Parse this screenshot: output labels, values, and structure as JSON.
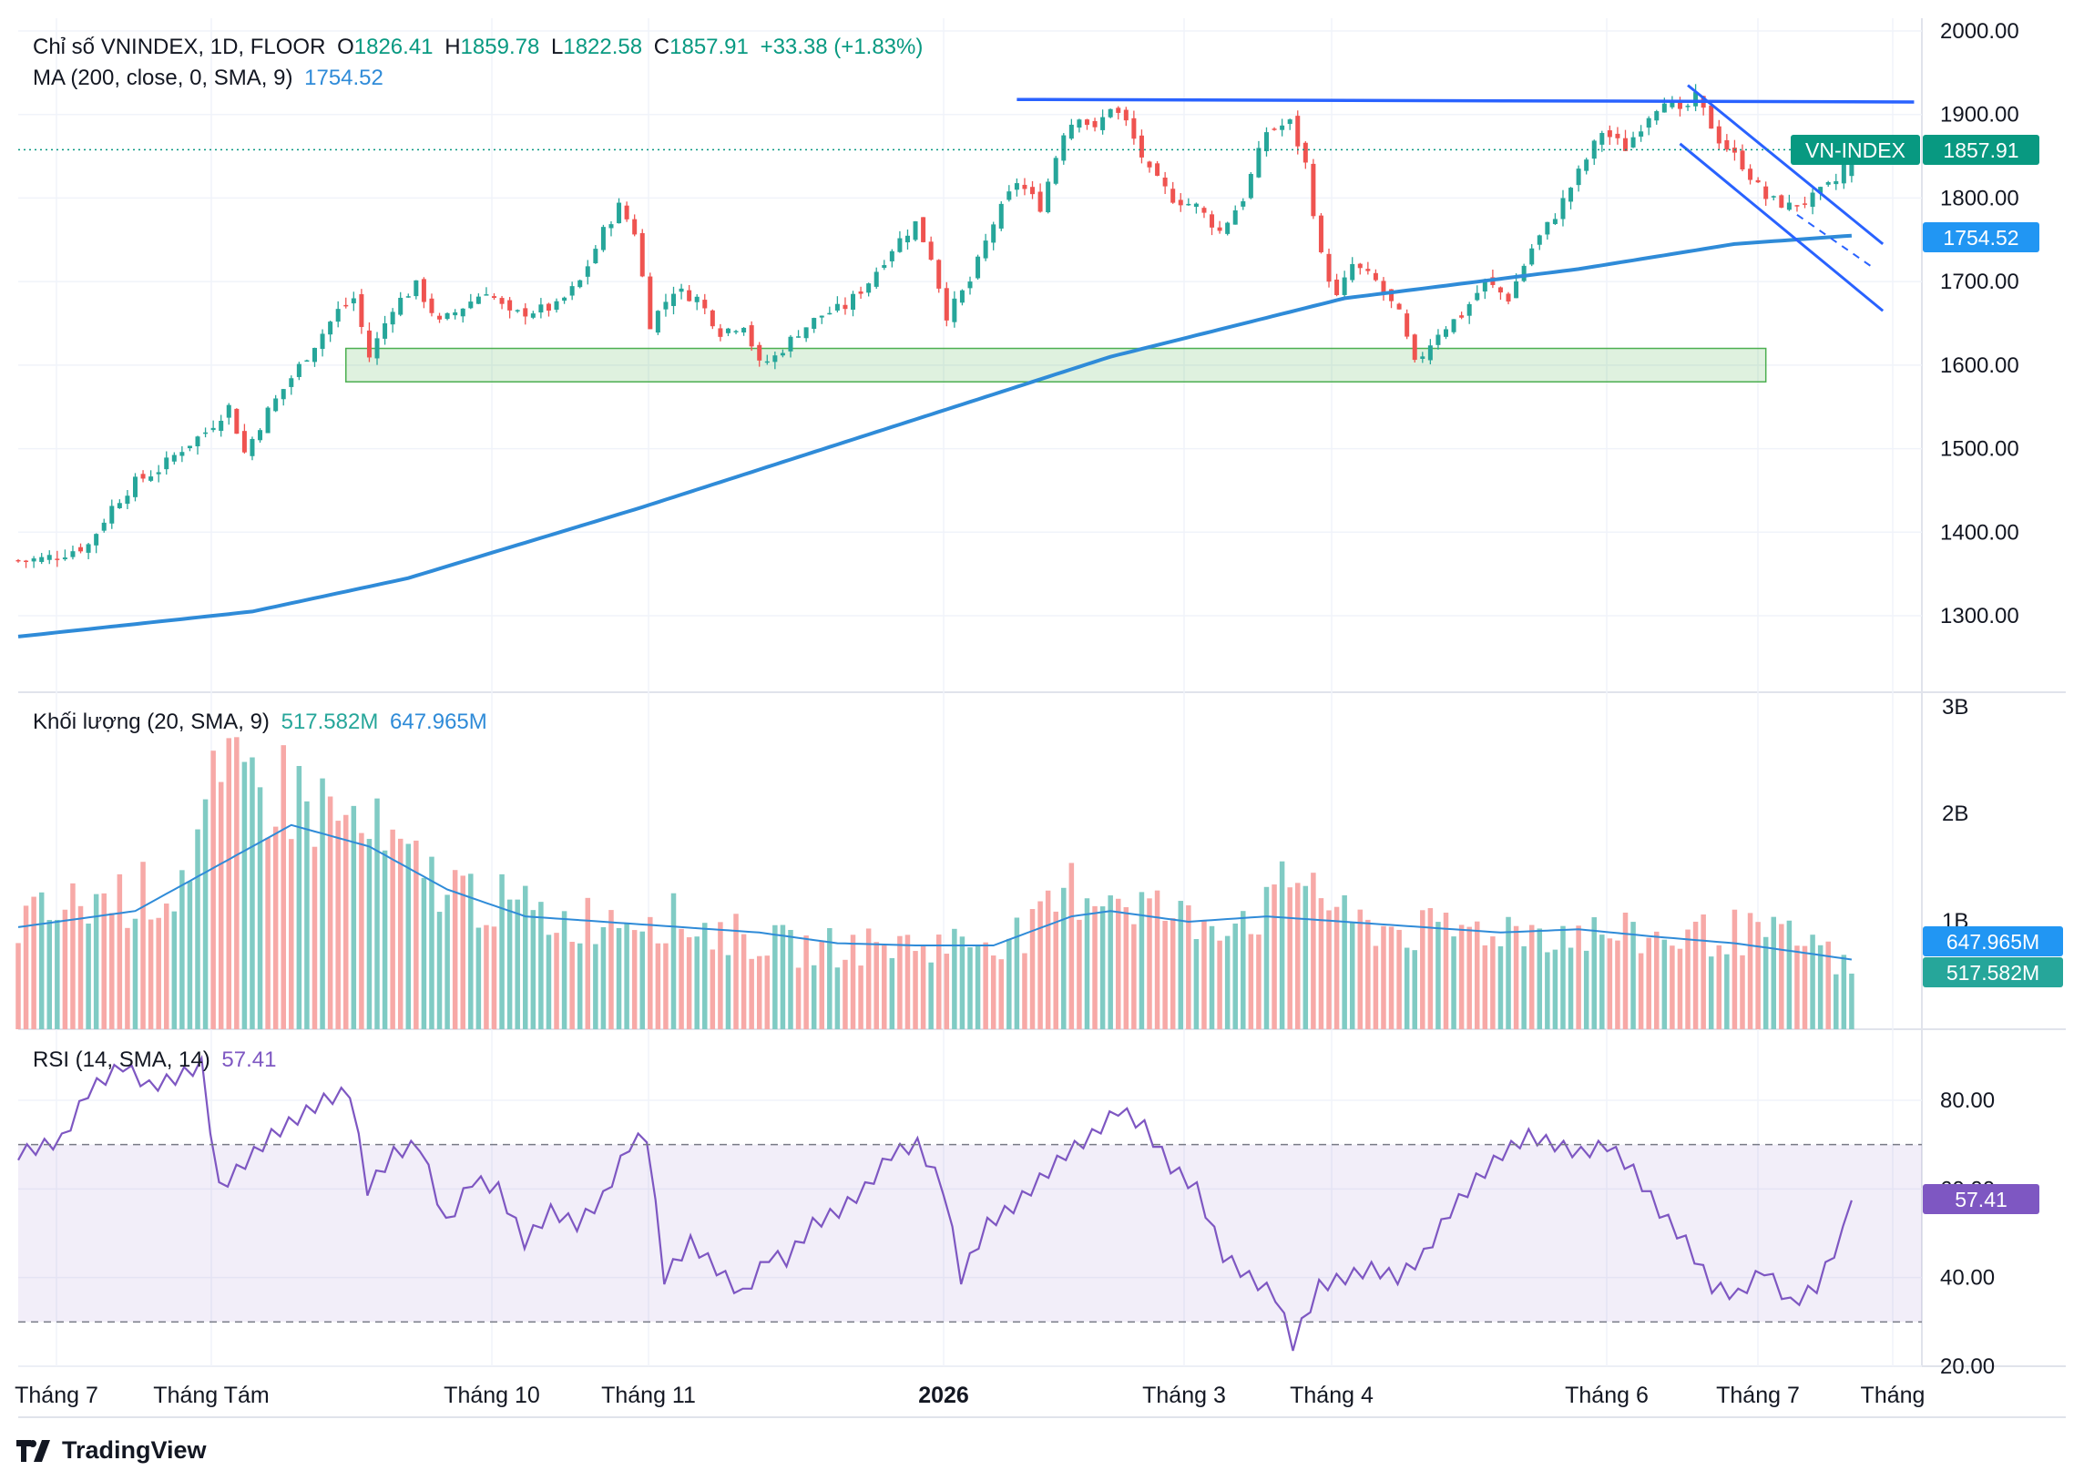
{
  "header": {
    "title": "Chỉ số VNINDEX, 1D, FLOOR",
    "o_label": "O",
    "o_value": "1826.41",
    "h_label": "H",
    "h_value": "1859.78",
    "l_label": "L",
    "l_value": "1822.58",
    "c_label": "C",
    "c_value": "1857.91",
    "change": "+33.38 (+1.83%)",
    "ma_label": "MA (200, close, 0, SMA, 9)",
    "ma_value": "1754.52"
  },
  "volume_header": {
    "label": "Khối lượng (20, SMA, 9)",
    "value1": "517.582M",
    "value2": "647.965M"
  },
  "rsi_header": {
    "label": "RSI (14, SMA, 14)",
    "value": "57.41"
  },
  "badges": {
    "symbol": "VN-INDEX",
    "price": "1857.91",
    "ma": "1754.52",
    "vol_ma": "647.965M",
    "vol": "517.582M",
    "rsi": "57.41"
  },
  "brand": "TradingView",
  "colors": {
    "up": "#26a69a",
    "down": "#ef5350",
    "ma": "#2f8bd8",
    "trend": "#2962ff",
    "rsi": "#7e57c2",
    "zone": "#4caf50"
  },
  "chart_data": [
    {
      "type": "candlestick",
      "panel": "price",
      "y_ticks": [
        "2000.00",
        "1900.00",
        "1800.00",
        "1700.00",
        "1600.00",
        "1500.00",
        "1400.00",
        "1300.00"
      ],
      "ylim": [
        1225,
        2035
      ],
      "x_ticks": [
        "Tháng 7",
        "Tháng Tám",
        "Tháng 10",
        "Tháng 11",
        "2026",
        "Tháng 3",
        "Tháng 4",
        "Tháng 6",
        "Tháng 7",
        "Tháng"
      ],
      "close_series": [
        [
          0,
          1366
        ],
        [
          3,
          1368
        ],
        [
          6,
          1375
        ],
        [
          9,
          1385
        ],
        [
          12,
          1430
        ],
        [
          15,
          1460
        ],
        [
          18,
          1475
        ],
        [
          21,
          1500
        ],
        [
          24,
          1520
        ],
        [
          27,
          1550
        ],
        [
          29,
          1495
        ],
        [
          32,
          1545
        ],
        [
          35,
          1585
        ],
        [
          38,
          1625
        ],
        [
          41,
          1665
        ],
        [
          43,
          1680
        ],
        [
          45,
          1610
        ],
        [
          48,
          1670
        ],
        [
          51,
          1695
        ],
        [
          54,
          1650
        ],
        [
          57,
          1670
        ],
        [
          60,
          1690
        ],
        [
          63,
          1660
        ],
        [
          66,
          1665
        ],
        [
          69,
          1670
        ],
        [
          72,
          1700
        ],
        [
          75,
          1760
        ],
        [
          77,
          1790
        ],
        [
          79,
          1760
        ],
        [
          81,
          1650
        ],
        [
          84,
          1690
        ],
        [
          87,
          1680
        ],
        [
          90,
          1640
        ],
        [
          93,
          1650
        ],
        [
          95,
          1600
        ],
        [
          97,
          1610
        ],
        [
          100,
          1640
        ],
        [
          103,
          1660
        ],
        [
          106,
          1670
        ],
        [
          109,
          1700
        ],
        [
          112,
          1740
        ],
        [
          115,
          1770
        ],
        [
          117,
          1730
        ],
        [
          119,
          1660
        ],
        [
          122,
          1700
        ],
        [
          125,
          1770
        ],
        [
          128,
          1820
        ],
        [
          131,
          1790
        ],
        [
          134,
          1880
        ],
        [
          136,
          1900
        ],
        [
          138,
          1880
        ],
        [
          140,
          1910
        ],
        [
          142,
          1890
        ],
        [
          145,
          1830
        ],
        [
          148,
          1800
        ],
        [
          151,
          1790
        ],
        [
          154,
          1760
        ],
        [
          157,
          1800
        ],
        [
          160,
          1880
        ],
        [
          163,
          1890
        ],
        [
          165,
          1840
        ],
        [
          167,
          1730
        ],
        [
          169,
          1680
        ],
        [
          171,
          1720
        ],
        [
          174,
          1700
        ],
        [
          177,
          1660
        ],
        [
          179,
          1600
        ],
        [
          182,
          1640
        ],
        [
          185,
          1660
        ],
        [
          188,
          1700
        ],
        [
          191,
          1680
        ],
        [
          194,
          1740
        ],
        [
          197,
          1780
        ],
        [
          200,
          1830
        ],
        [
          203,
          1880
        ],
        [
          206,
          1860
        ],
        [
          209,
          1900
        ],
        [
          211,
          1920
        ],
        [
          213,
          1900
        ],
        [
          215,
          1920
        ],
        [
          218,
          1870
        ],
        [
          221,
          1840
        ],
        [
          224,
          1800
        ],
        [
          227,
          1790
        ],
        [
          230,
          1800
        ],
        [
          233,
          1820
        ],
        [
          235,
          1858
        ]
      ],
      "ma_series": [
        [
          0,
          1275
        ],
        [
          30,
          1305
        ],
        [
          50,
          1345
        ],
        [
          80,
          1430
        ],
        [
          110,
          1520
        ],
        [
          140,
          1610
        ],
        [
          170,
          1680
        ],
        [
          200,
          1715
        ],
        [
          220,
          1745
        ],
        [
          235,
          1755
        ]
      ],
      "annotations": {
        "resistance": [
          [
            128,
            1918
          ],
          [
            243,
            1915
          ]
        ],
        "channel_upper": [
          [
            214,
            1935
          ],
          [
            239,
            1745
          ]
        ],
        "channel_lower": [
          [
            213,
            1865
          ],
          [
            239,
            1665
          ]
        ],
        "dashed": [
          [
            228,
            1780
          ],
          [
            238,
            1715
          ]
        ],
        "support_zone": {
          "x": [
            42,
            224
          ],
          "y": [
            1580,
            1620
          ]
        }
      }
    },
    {
      "type": "bar",
      "panel": "volume",
      "y_ticks": [
        "3B",
        "2B",
        "1B"
      ],
      "ylim": [
        0,
        3000
      ],
      "values_millions_sampled": [
        [
          0,
          980
        ],
        [
          10,
          1200
        ],
        [
          20,
          1300
        ],
        [
          25,
          2100
        ],
        [
          30,
          2300
        ],
        [
          35,
          2200
        ],
        [
          40,
          2000
        ],
        [
          45,
          1800
        ],
        [
          50,
          1500
        ],
        [
          60,
          1200
        ],
        [
          70,
          1000
        ],
        [
          80,
          1100
        ],
        [
          90,
          900
        ],
        [
          100,
          750
        ],
        [
          110,
          780
        ],
        [
          120,
          800
        ],
        [
          130,
          900
        ],
        [
          135,
          1300
        ],
        [
          140,
          1300
        ],
        [
          150,
          1000
        ],
        [
          160,
          1100
        ],
        [
          165,
          1500
        ],
        [
          170,
          1000
        ],
        [
          180,
          900
        ],
        [
          190,
          950
        ],
        [
          200,
          900
        ],
        [
          210,
          850
        ],
        [
          220,
          900
        ],
        [
          230,
          800
        ],
        [
          235,
          518
        ]
      ],
      "ma_series_millions": [
        [
          0,
          950
        ],
        [
          15,
          1100
        ],
        [
          25,
          1500
        ],
        [
          35,
          1900
        ],
        [
          45,
          1700
        ],
        [
          55,
          1300
        ],
        [
          65,
          1050
        ],
        [
          75,
          1000
        ],
        [
          85,
          950
        ],
        [
          95,
          900
        ],
        [
          105,
          800
        ],
        [
          115,
          780
        ],
        [
          125,
          780
        ],
        [
          135,
          1050
        ],
        [
          140,
          1100
        ],
        [
          150,
          1000
        ],
        [
          160,
          1050
        ],
        [
          170,
          1000
        ],
        [
          180,
          950
        ],
        [
          190,
          900
        ],
        [
          200,
          930
        ],
        [
          210,
          860
        ],
        [
          220,
          800
        ],
        [
          230,
          700
        ],
        [
          235,
          648
        ]
      ]
    },
    {
      "type": "line",
      "panel": "rsi",
      "y_ticks": [
        "80.00",
        "60.00",
        "40.00",
        "20.00"
      ],
      "ylim": [
        20,
        95
      ],
      "band": [
        30,
        70
      ],
      "values": [
        [
          0,
          68
        ],
        [
          5,
          71
        ],
        [
          8,
          82
        ],
        [
          12,
          88
        ],
        [
          15,
          83
        ],
        [
          18,
          85
        ],
        [
          21,
          88
        ],
        [
          23,
          60
        ],
        [
          26,
          66
        ],
        [
          29,
          72
        ],
        [
          32,
          76
        ],
        [
          35,
          80
        ],
        [
          38,
          82
        ],
        [
          40,
          60
        ],
        [
          43,
          68
        ],
        [
          46,
          70
        ],
        [
          49,
          52
        ],
        [
          52,
          62
        ],
        [
          55,
          60
        ],
        [
          58,
          48
        ],
        [
          61,
          55
        ],
        [
          64,
          52
        ],
        [
          67,
          58
        ],
        [
          70,
          70
        ],
        [
          72,
          72
        ],
        [
          74,
          40
        ],
        [
          77,
          48
        ],
        [
          80,
          42
        ],
        [
          83,
          36
        ],
        [
          86,
          45
        ],
        [
          88,
          44
        ],
        [
          91,
          52
        ],
        [
          94,
          55
        ],
        [
          97,
          60
        ],
        [
          100,
          68
        ],
        [
          103,
          70
        ],
        [
          106,
          60
        ],
        [
          108,
          40
        ],
        [
          111,
          52
        ],
        [
          114,
          56
        ],
        [
          117,
          62
        ],
        [
          120,
          68
        ],
        [
          123,
          72
        ],
        [
          126,
          78
        ],
        [
          129,
          74
        ],
        [
          132,
          65
        ],
        [
          135,
          60
        ],
        [
          138,
          45
        ],
        [
          141,
          40
        ],
        [
          144,
          36
        ],
        [
          146,
          25
        ],
        [
          149,
          38
        ],
        [
          152,
          40
        ],
        [
          155,
          42
        ],
        [
          158,
          40
        ],
        [
          161,
          45
        ],
        [
          164,
          55
        ],
        [
          167,
          62
        ],
        [
          170,
          68
        ],
        [
          173,
          72
        ],
        [
          176,
          70
        ],
        [
          179,
          68
        ],
        [
          182,
          70
        ],
        [
          185,
          64
        ],
        [
          188,
          55
        ],
        [
          191,
          48
        ],
        [
          194,
          38
        ],
        [
          197,
          36
        ],
        [
          200,
          42
        ],
        [
          203,
          34
        ],
        [
          206,
          38
        ],
        [
          209,
          50
        ],
        [
          210,
          58
        ]
      ]
    }
  ]
}
